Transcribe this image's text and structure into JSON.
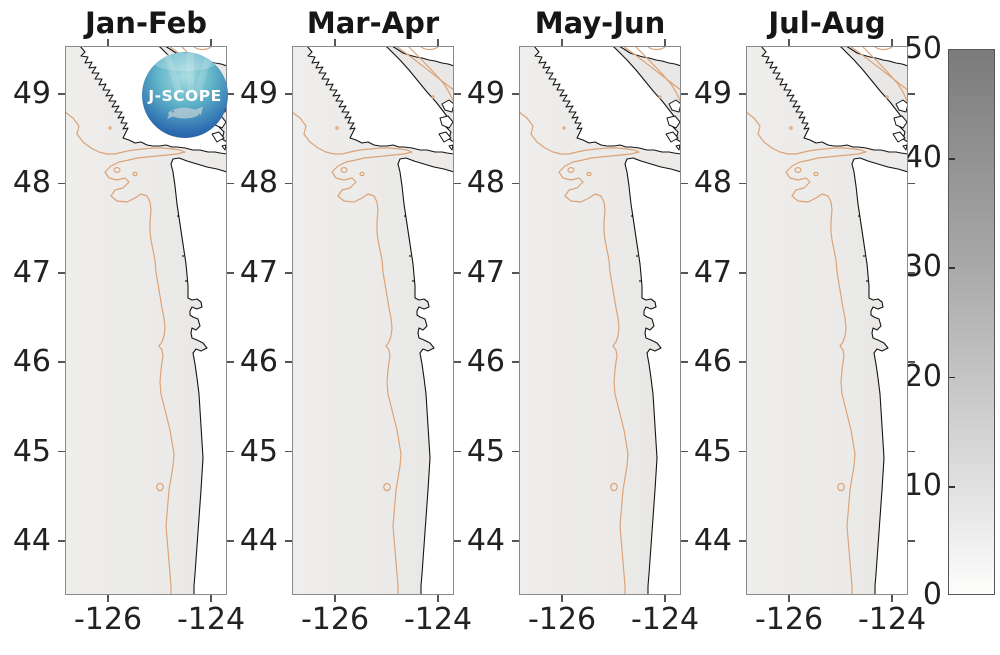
{
  "figure": {
    "description": "Four-panel coastal map figure (J-SCOPE model output) for the Pacific Northwest shelf with a grayscale colorbar from 0 to 50"
  },
  "logo": {
    "text": "J-SCOPE"
  },
  "panels": [
    {
      "title": "Jan-Feb"
    },
    {
      "title": "Mar-Apr"
    },
    {
      "title": "May-Jun"
    },
    {
      "title": "Jul-Aug"
    }
  ],
  "axes": {
    "lat_ticks": [
      "49",
      "48",
      "47",
      "46",
      "45",
      "44"
    ],
    "lon_ticks": [
      "-126",
      "-124"
    ]
  },
  "colorbar": {
    "ticks": [
      "0",
      "10",
      "20",
      "30",
      "40",
      "50"
    ],
    "min": 0,
    "max": 50
  },
  "colors": {
    "ocean": "#f4f3f1",
    "land": "#ffffff",
    "coastline": "#141414",
    "isobath_contour": "#dca377",
    "colorbar_top": "#7b7b7b",
    "colorbar_bottom": "#fdfdfc",
    "text": "#1a1a1a"
  },
  "chart_data": {
    "type": "map",
    "title": "",
    "panels": [
      "Jan-Feb",
      "Mar-Apr",
      "May-Jun",
      "Jul-Aug"
    ],
    "region": "U.S. Pacific Northwest coast: southern Vancouver Island, Strait of Juan de Fuca, Washington and Oregon shelf",
    "x_axis": {
      "tick_values": [
        -126,
        -124
      ],
      "range": [
        -126.84,
        -123.69
      ],
      "unit": "degrees longitude"
    },
    "y_axis": {
      "tick_values": [
        49,
        48,
        47,
        46,
        45,
        44
      ],
      "range": [
        43.4,
        49.54
      ],
      "unit": "degrees latitude"
    },
    "colorbar": {
      "range": [
        0,
        50
      ],
      "tick_values": [
        0,
        10,
        20,
        30,
        40,
        50
      ],
      "colormap": "white (0) to dark gray (50)",
      "legend_position": "right"
    },
    "values_summary": "Mapped field is near 0 (white to pale gray) over the entire domain in all four bimonthly panels",
    "features": {
      "coastline": "black contour",
      "shelf_break_isobath": "tan/orange contour running alongshore, looping into the Juan de Fuca canyon and Strait of Georgia",
      "logo": "J-SCOPE circular ocean logo overlaid on the Jan-Feb panel"
    },
    "grid": false
  }
}
